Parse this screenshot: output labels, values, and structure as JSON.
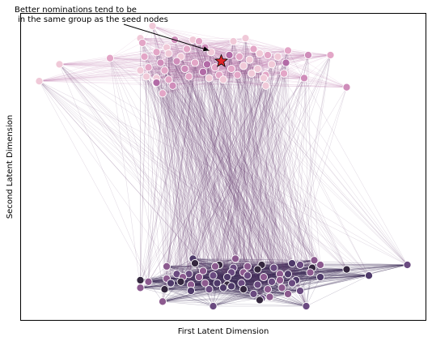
{
  "chart_data": {
    "type": "scatter",
    "title": "",
    "xlabel": "First Latent Dimension",
    "ylabel": "Second Latent Dimension",
    "xlim": [
      0,
      100
    ],
    "ylim": [
      0,
      100
    ],
    "grid": false,
    "x_ticks_shown": false,
    "y_ticks_shown": false,
    "annotation": {
      "text_line1": "Better nominations tend to be",
      "text_line2": "in the same group as the seed nodes",
      "arrow_target": [
        46.5,
        88
      ]
    },
    "seed_marker": {
      "shape": "star",
      "x": 49.5,
      "y": 84.5,
      "color": "#e0262a"
    },
    "edge_colors": {
      "intra_top": "#c890bb",
      "intra_bottom": "#3a2a55",
      "cross": "#6b3f73"
    },
    "point_colors": [
      "#f0c9d8",
      "#e3a6c7",
      "#cf8dba",
      "#b26aa6",
      "#8c5a8f",
      "#6a4a80",
      "#4f3a6a",
      "#34273f"
    ],
    "groups": [
      {
        "name": "",
        "points": [
          [
            32.5,
            96.0
          ],
          [
            55.5,
            92.0
          ],
          [
            29.5,
            92.0
          ],
          [
            38.0,
            91.5
          ],
          [
            42.5,
            91.5
          ],
          [
            44.0,
            91.0
          ],
          [
            52.5,
            91.0
          ],
          [
            30.0,
            90.5
          ],
          [
            57.5,
            88.5
          ],
          [
            36.0,
            89.0
          ],
          [
            41.0,
            88.5
          ],
          [
            45.5,
            89.0
          ],
          [
            47.0,
            87.5
          ],
          [
            33.5,
            87.5
          ],
          [
            36.5,
            87.0
          ],
          [
            39.5,
            86.0
          ],
          [
            51.5,
            86.5
          ],
          [
            54.0,
            86.0
          ],
          [
            56.5,
            85.0
          ],
          [
            59.0,
            87.0
          ],
          [
            61.0,
            86.5
          ],
          [
            63.5,
            86.0
          ],
          [
            66.0,
            88.0
          ],
          [
            71.0,
            86.5
          ],
          [
            76.5,
            86.5
          ],
          [
            22.0,
            85.5
          ],
          [
            30.5,
            86.0
          ],
          [
            34.5,
            84.0
          ],
          [
            38.5,
            84.5
          ],
          [
            43.0,
            84.0
          ],
          [
            46.0,
            83.5
          ],
          [
            48.0,
            82.5
          ],
          [
            52.0,
            82.0
          ],
          [
            55.0,
            83.0
          ],
          [
            58.5,
            82.0
          ],
          [
            62.0,
            83.5
          ],
          [
            65.5,
            84.0
          ],
          [
            9.5,
            83.5
          ],
          [
            31.5,
            82.5
          ],
          [
            35.5,
            81.5
          ],
          [
            40.5,
            82.0
          ],
          [
            45.0,
            81.0
          ],
          [
            49.0,
            80.0
          ],
          [
            53.5,
            80.0
          ],
          [
            57.0,
            80.5
          ],
          [
            60.5,
            80.0
          ],
          [
            31.0,
            79.5
          ],
          [
            33.5,
            79.0
          ],
          [
            36.5,
            78.5
          ],
          [
            41.5,
            79.5
          ],
          [
            46.5,
            79.0
          ],
          [
            50.0,
            78.5
          ],
          [
            60.0,
            79.0
          ],
          [
            65.0,
            80.5
          ],
          [
            70.0,
            79.0
          ],
          [
            4.5,
            78.0
          ],
          [
            60.5,
            76.5
          ],
          [
            37.5,
            76.5
          ],
          [
            33.5,
            77.5
          ],
          [
            29.5,
            81.5
          ],
          [
            80.5,
            76.0
          ],
          [
            35.0,
            74.0
          ]
        ]
      },
      {
        "name": "",
        "points": [
          [
            42.5,
            20.0
          ],
          [
            53.0,
            20.0
          ],
          [
            72.5,
            19.5
          ],
          [
            43.0,
            18.5
          ],
          [
            49.0,
            18.0
          ],
          [
            52.5,
            17.0
          ],
          [
            56.0,
            17.5
          ],
          [
            59.5,
            18.0
          ],
          [
            62.5,
            17.0
          ],
          [
            67.0,
            18.5
          ],
          [
            69.0,
            18.0
          ],
          [
            72.0,
            17.0
          ],
          [
            74.0,
            18.0
          ],
          [
            36.0,
            17.5
          ],
          [
            48.0,
            17.5
          ],
          [
            58.5,
            16.5
          ],
          [
            80.5,
            16.5
          ],
          [
            95.5,
            18.0
          ],
          [
            45.0,
            16.0
          ],
          [
            52.0,
            15.5
          ],
          [
            55.0,
            15.5
          ],
          [
            38.5,
            15.0
          ],
          [
            41.5,
            15.0
          ],
          [
            44.0,
            14.0
          ],
          [
            47.5,
            14.5
          ],
          [
            51.0,
            14.0
          ],
          [
            56.0,
            14.5
          ],
          [
            60.0,
            14.0
          ],
          [
            64.0,
            15.0
          ],
          [
            66.0,
            15.0
          ],
          [
            71.5,
            15.5
          ],
          [
            36.0,
            13.5
          ],
          [
            40.0,
            14.0
          ],
          [
            86.0,
            14.5
          ],
          [
            29.5,
            13.0
          ],
          [
            31.5,
            12.5
          ],
          [
            37.0,
            12.0
          ],
          [
            39.5,
            12.5
          ],
          [
            42.0,
            11.5
          ],
          [
            45.5,
            12.0
          ],
          [
            48.5,
            12.0
          ],
          [
            51.0,
            11.5
          ],
          [
            54.5,
            12.0
          ],
          [
            58.5,
            11.5
          ],
          [
            62.0,
            12.5
          ],
          [
            64.0,
            13.0
          ],
          [
            68.0,
            13.0
          ],
          [
            67.0,
            12.0
          ],
          [
            74.0,
            14.0
          ],
          [
            29.5,
            10.5
          ],
          [
            35.5,
            10.0
          ],
          [
            46.5,
            10.0
          ],
          [
            50.0,
            10.5
          ],
          [
            52.0,
            11.0
          ],
          [
            55.0,
            10.0
          ],
          [
            61.0,
            10.0
          ],
          [
            64.5,
            10.5
          ],
          [
            69.0,
            9.5
          ],
          [
            42.0,
            9.5
          ],
          [
            57.5,
            8.5
          ],
          [
            59.5,
            7.0
          ],
          [
            66.0,
            8.5
          ],
          [
            61.5,
            7.5
          ],
          [
            35.0,
            6.0
          ],
          [
            47.5,
            4.5
          ],
          [
            59.0,
            6.5
          ],
          [
            70.5,
            4.5
          ]
        ]
      }
    ]
  }
}
